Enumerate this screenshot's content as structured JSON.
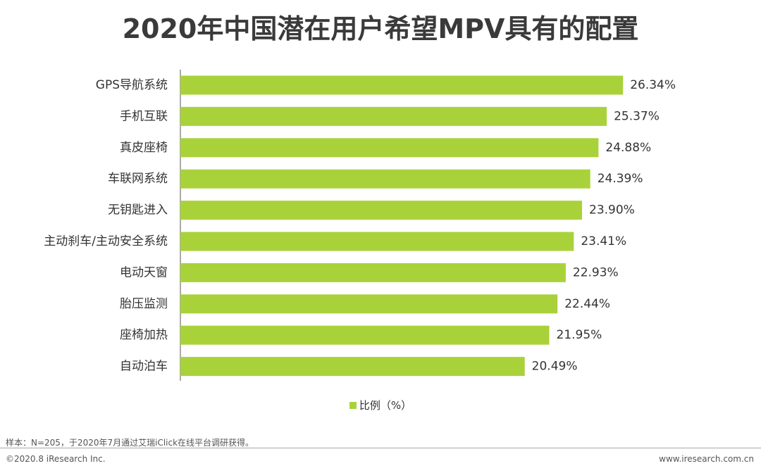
{
  "chart_data": {
    "type": "bar",
    "orientation": "horizontal",
    "title": "2020年中国潜在用户希望MPV具有的配置",
    "categories": [
      "GPS导航系统",
      "手机互联",
      "真皮座椅",
      "车联网系统",
      "无钥匙进入",
      "主动刹车/主动安全系统",
      "电动天窗",
      "胎压监测",
      "座椅加热",
      "自动泊车"
    ],
    "values": [
      26.34,
      25.37,
      24.88,
      24.39,
      23.9,
      23.41,
      22.93,
      22.44,
      21.95,
      20.49
    ],
    "value_labels": [
      "26.34%",
      "25.37%",
      "24.88%",
      "24.39%",
      "23.90%",
      "23.41%",
      "22.93%",
      "22.44%",
      "21.95%",
      "20.49%"
    ],
    "series_name": "比例（%）",
    "xlim": [
      0,
      30
    ],
    "legend_position": "bottom",
    "color": "#a9d23a"
  },
  "footer": {
    "note": "样本：N=205，于2020年7月通过艾瑞iClick在线平台调研获得。",
    "copyright": "©2020.8 iResearch Inc.",
    "website": "www.iresearch.com.cn"
  }
}
